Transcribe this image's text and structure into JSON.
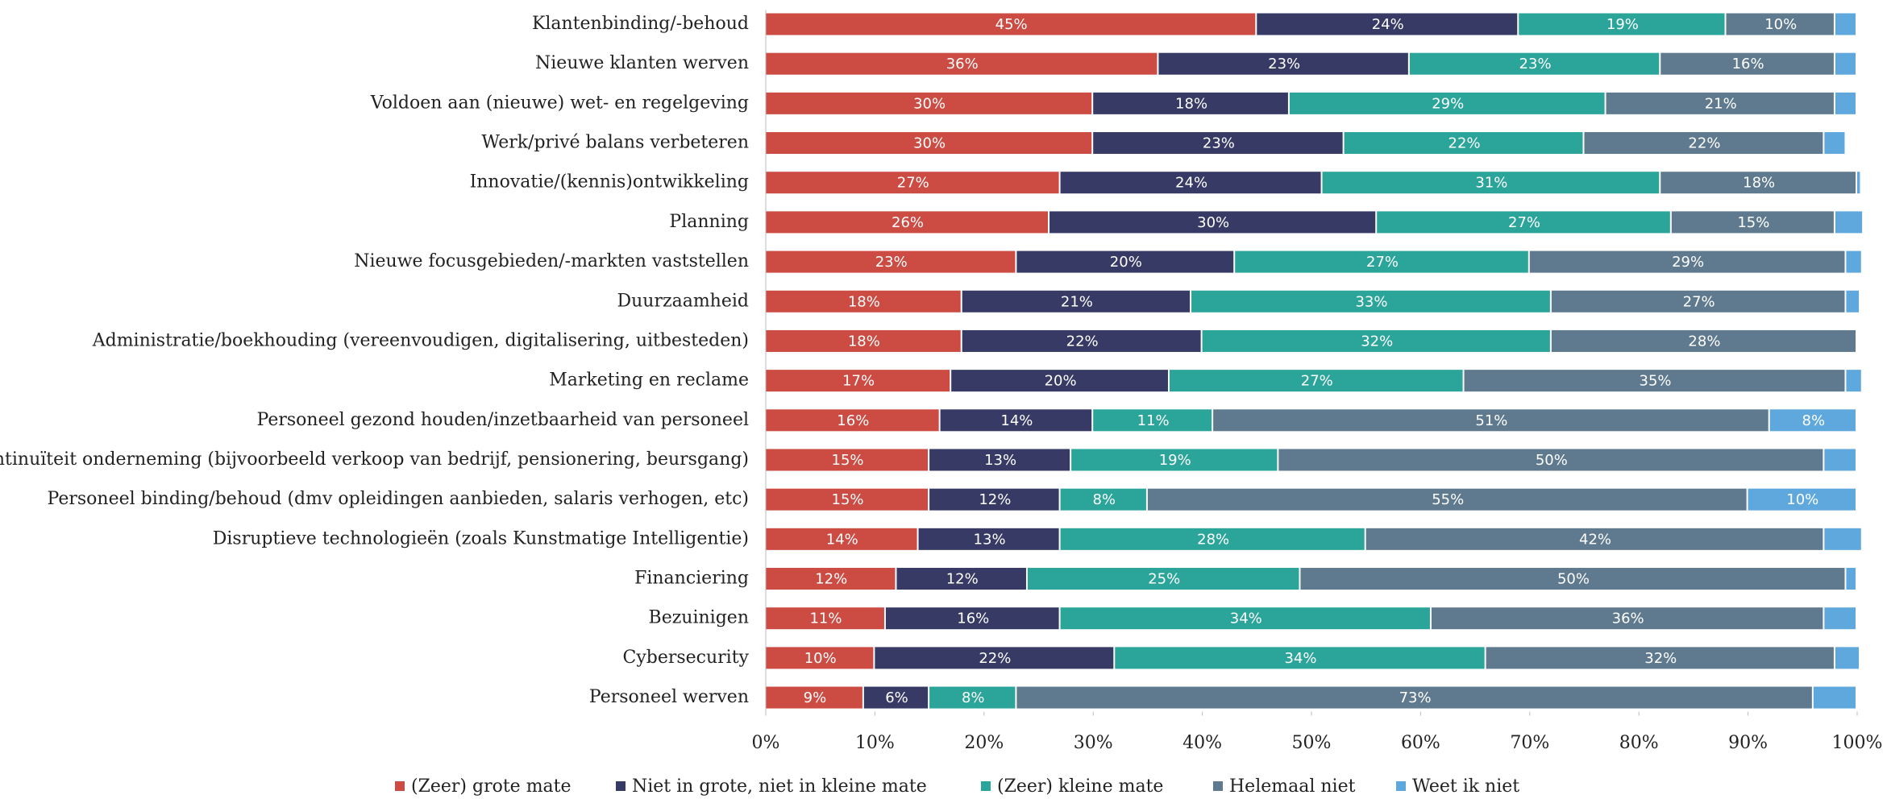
{
  "chart_data": {
    "type": "stacked-barh",
    "categories": [
      "Klantenbinding/-behoud",
      "Nieuwe klanten werven",
      "Voldoen aan (nieuwe) wet- en regelgeving",
      "Werk/privé balans verbeteren",
      "Innovatie/(kennis)ontwikkeling",
      "Planning",
      "Nieuwe focusgebieden/-markten vaststellen",
      "Duurzaamheid",
      "Administratie/boekhouding (vereenvoudigen, digitalisering, uitbesteden)",
      "Marketing en reclame",
      "Personeel gezond houden/inzetbaarheid van personeel",
      "Continuïteit onderneming (bijvoorbeeld verkoop van bedrijf, pensionering, beursgang)",
      "Personeel binding/behoud (dmv opleidingen aanbieden, salaris verhogen, etc)",
      "Disruptieve technologieën (zoals Kunstmatige Intelligentie)",
      "Financiering",
      "Bezuinigen",
      "Cybersecurity",
      "Personeel werven"
    ],
    "series": [
      {
        "name": "(Zeer) grote mate",
        "color": "#cc4b42",
        "values": [
          45,
          36,
          30,
          30,
          27,
          26,
          23,
          18,
          18,
          17,
          16,
          15,
          15,
          14,
          12,
          11,
          10,
          9
        ],
        "value_labels": [
          "45%",
          "36%",
          "30%",
          "30%",
          "27%",
          "26%",
          "23%",
          "18%",
          "18%",
          "17%",
          "16%",
          "15%",
          "15%",
          "14%",
          "12%",
          "11%",
          "10%",
          "9%"
        ]
      },
      {
        "name": "Niet in grote, niet in kleine mate",
        "color": "#363a65",
        "values": [
          24,
          23,
          18,
          23,
          24,
          30,
          20,
          21,
          22,
          20,
          14,
          13,
          12,
          13,
          12,
          16,
          22,
          6
        ],
        "value_labels": [
          "24%",
          "23%",
          "18%",
          "23%",
          "24%",
          "30%",
          "20%",
          "21%",
          "22%",
          "20%",
          "14%",
          "13%",
          "12%",
          "13%",
          "12%",
          "16%",
          "22%",
          "6%"
        ]
      },
      {
        "name": "(Zeer) kleine mate",
        "color": "#2ba59a",
        "values": [
          19,
          23,
          29,
          22,
          31,
          27,
          27,
          33,
          32,
          27,
          11,
          19,
          8,
          28,
          25,
          34,
          34,
          8
        ],
        "value_labels": [
          "19%",
          "23%",
          "29%",
          "22%",
          "31%",
          "27%",
          "27%",
          "33%",
          "32%",
          "27%",
          "11%",
          "19%",
          "8%",
          "28%",
          "25%",
          "34%",
          "34%",
          "8%"
        ]
      },
      {
        "name": "Helemaal niet",
        "color": "#5f7a8e",
        "values": [
          10,
          16,
          21,
          22,
          18,
          15,
          29,
          27,
          28,
          35,
          51,
          50,
          55,
          42,
          50,
          36,
          32,
          73
        ],
        "value_labels": [
          "10%",
          "16%",
          "21%",
          "22%",
          "18%",
          "15%",
          "29%",
          "27%",
          "28%",
          "35%",
          "51%",
          "50%",
          "55%",
          "42%",
          "50%",
          "36%",
          "32%",
          "73%"
        ]
      },
      {
        "name": "Weet ik niet",
        "color": "#5fa8de",
        "values": [
          2,
          2,
          2,
          2,
          0.4,
          2.6,
          1.5,
          1.3,
          0,
          1.5,
          8,
          3,
          10,
          3.5,
          1,
          3,
          2.3,
          4
        ],
        "value_labels": [
          null,
          null,
          null,
          null,
          null,
          null,
          null,
          null,
          null,
          null,
          "8%",
          null,
          "10%",
          null,
          null,
          null,
          null,
          null
        ]
      }
    ],
    "xlim": [
      0,
      100
    ],
    "xticks": [
      {
        "value": 0,
        "label": "0%"
      },
      {
        "value": 10,
        "label": "10%"
      },
      {
        "value": 20,
        "label": "20%"
      },
      {
        "value": 30,
        "label": "30%"
      },
      {
        "value": 40,
        "label": "40%"
      },
      {
        "value": 50,
        "label": "50%"
      },
      {
        "value": 60,
        "label": "60%"
      },
      {
        "value": 70,
        "label": "70%"
      },
      {
        "value": 80,
        "label": "80%"
      },
      {
        "value": 90,
        "label": "90%"
      },
      {
        "value": 100,
        "label": "100%"
      }
    ],
    "legend": "bottom"
  }
}
